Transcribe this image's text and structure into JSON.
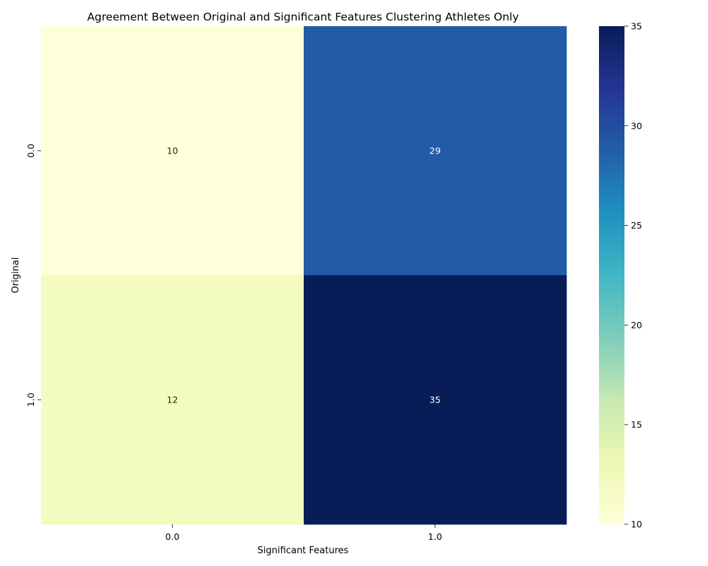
{
  "chart_data": {
    "type": "heatmap",
    "title": "Agreement Between Original and Significant Features Clustering Athletes Only",
    "xlabel": "Significant Features",
    "ylabel": "Original",
    "x_categories": [
      "0.0",
      "1.0"
    ],
    "y_categories": [
      "0.0",
      "1.0"
    ],
    "values": [
      [
        10,
        29
      ],
      [
        12,
        35
      ]
    ],
    "annotated": true,
    "colormap": "YlGnBu",
    "colorbar": {
      "range": [
        10,
        35
      ],
      "ticks": [
        10,
        15,
        20,
        25,
        30,
        35
      ]
    }
  }
}
